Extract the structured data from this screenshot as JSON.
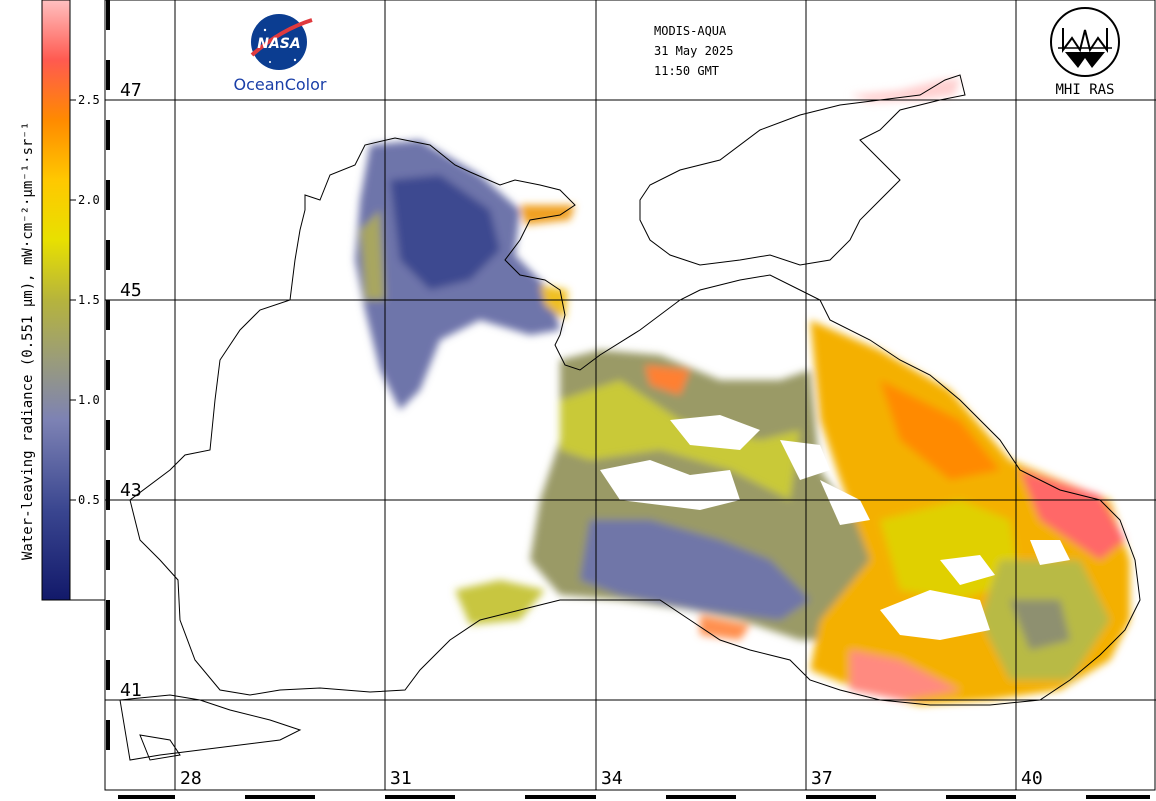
{
  "header": {
    "sensor": "MODIS-AQUA",
    "date": "31 May 2025",
    "time": "11:50 GMT"
  },
  "logos": {
    "nasa_text": "NASA",
    "oceancolor_text": "OceanColor",
    "mhi_text": "MHI RAS"
  },
  "colorbar": {
    "title": "Water-leaving radiance (0.551 µm), mW·cm⁻²·µm⁻¹·sr⁻¹",
    "ticks": [
      "2.5",
      "2.0",
      "1.5",
      "1.0",
      "0.5"
    ],
    "range": [
      0,
      3.0
    ],
    "colors": [
      "#1a1f6e",
      "#4a5aa0",
      "#8a90b8",
      "#9a9a6a",
      "#c8c830",
      "#f0e000",
      "#ffb000",
      "#ff7000",
      "#ff5050",
      "#ffb0b0"
    ]
  },
  "axes": {
    "lon_labels": [
      "28",
      "31",
      "34",
      "37",
      "40"
    ],
    "lat_labels": [
      "47",
      "45",
      "43",
      "41"
    ]
  }
}
